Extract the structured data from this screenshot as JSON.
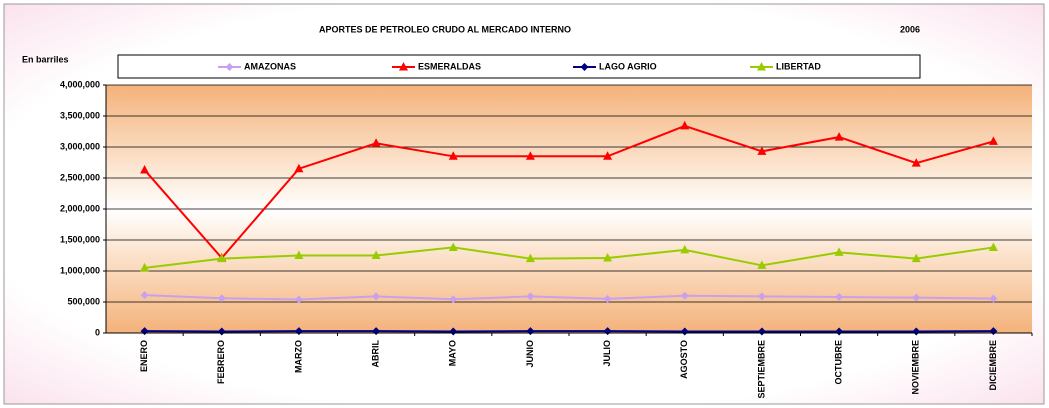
{
  "chart_data": {
    "type": "line",
    "title": "APORTES DE PETROLEO CRUDO AL MERCADO INTERNO",
    "subtitle": "2006",
    "y_label": "En barriles",
    "categories": [
      "ENERO",
      "FEBRERO",
      "MARZO",
      "ABRIL",
      "MAYO",
      "JUNIO",
      "JULIO",
      "AGOSTO",
      "SEPTIEMBRE",
      "OCTUBRE",
      "NOVIEMBRE",
      "DICIEMBRE"
    ],
    "series": [
      {
        "name": "AMAZONAS",
        "color": "#c9a0f0",
        "marker": "diamond",
        "values": [
          610000,
          560000,
          540000,
          590000,
          545000,
          590000,
          550000,
          600000,
          590000,
          580000,
          570000,
          555000
        ]
      },
      {
        "name": "ESMERALDAS",
        "color": "#ff0000",
        "marker": "triangle",
        "values": [
          2630000,
          1210000,
          2650000,
          3060000,
          2850000,
          2850000,
          2850000,
          3340000,
          2930000,
          3160000,
          2740000,
          3090000
        ]
      },
      {
        "name": "LAGO AGRIO",
        "color": "#000080",
        "marker": "diamond",
        "values": [
          30000,
          25000,
          30000,
          30000,
          25000,
          30000,
          30000,
          25000,
          25000,
          25000,
          25000,
          30000
        ]
      },
      {
        "name": "LIBERTAD",
        "color": "#99cc00",
        "marker": "triangle",
        "values": [
          1050000,
          1200000,
          1250000,
          1250000,
          1380000,
          1200000,
          1210000,
          1340000,
          1090000,
          1300000,
          1200000,
          1380000
        ]
      }
    ],
    "ylim": [
      0,
      4000000
    ],
    "yticks": [
      0,
      {
        "value": 500000,
        "label": "500,000"
      },
      {
        "value": 1000000,
        "label": "1,000,000"
      },
      {
        "value": 1500000,
        "label": "1,500,000"
      },
      {
        "value": 2000000,
        "label": "2,000,000"
      },
      {
        "value": 2500000,
        "label": "2,500,000"
      },
      {
        "value": 3000000,
        "label": "3,000,000"
      },
      {
        "value": 3500000,
        "label": "3,500,000"
      },
      {
        "value": 4000000,
        "label": "4,000,000"
      }
    ],
    "grid": true,
    "legend": "top"
  }
}
